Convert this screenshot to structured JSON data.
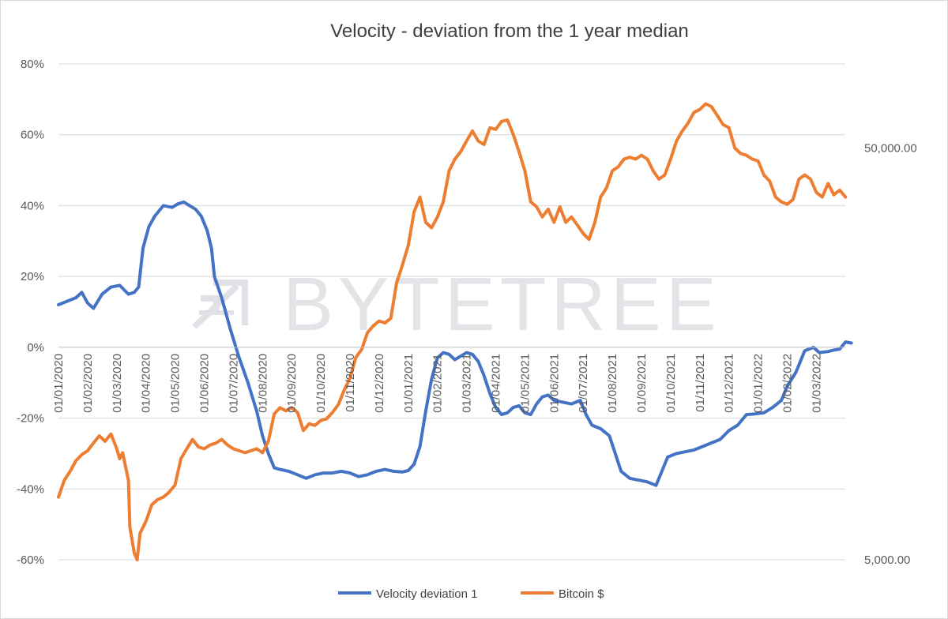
{
  "chart_data": {
    "type": "line",
    "title": "Velocity - deviation from the 1 year median",
    "y_left": {
      "ylim": [
        -60,
        80
      ],
      "ticks": [
        80,
        60,
        40,
        20,
        0,
        -20,
        -40,
        -60
      ],
      "tick_labels": [
        "80%",
        "60%",
        "40%",
        "20%",
        "0%",
        "-20%",
        "-40%",
        "-60%"
      ]
    },
    "y_right": {
      "scale": "log",
      "ylim": [
        5000,
        80000
      ],
      "ticks": [
        50000,
        5000
      ],
      "tick_labels": [
        "50,000.00",
        "5,000.00"
      ]
    },
    "x": {
      "start": "2020-01-01",
      "end": "2022-03-31",
      "tick_labels": [
        "01/01/2020",
        "01/02/2020",
        "01/03/2020",
        "01/04/2020",
        "01/05/2020",
        "01/06/2020",
        "01/07/2020",
        "01/08/2020",
        "01/09/2020",
        "01/10/2020",
        "01/11/2020",
        "01/12/2020",
        "01/01/2021",
        "01/02/2021",
        "01/03/2021",
        "01/04/2021",
        "01/05/2021",
        "01/06/2021",
        "01/07/2021",
        "01/08/2021",
        "01/09/2021",
        "01/10/2021",
        "01/11/2021",
        "01/12/2021",
        "01/01/2022",
        "01/02/2022",
        "01/03/2022"
      ]
    },
    "series": [
      {
        "name": "Velocity deviation 1",
        "color": "#4472c4",
        "axis": "left",
        "points": [
          [
            0,
            12
          ],
          [
            0.3,
            13
          ],
          [
            0.6,
            14
          ],
          [
            0.8,
            15.5
          ],
          [
            1.0,
            12.5
          ],
          [
            1.2,
            11
          ],
          [
            1.5,
            15
          ],
          [
            1.8,
            17
          ],
          [
            2.1,
            17.5
          ],
          [
            2.4,
            15
          ],
          [
            2.6,
            15.5
          ],
          [
            2.75,
            17
          ],
          [
            2.9,
            28
          ],
          [
            3.1,
            34
          ],
          [
            3.3,
            37
          ],
          [
            3.6,
            40
          ],
          [
            3.9,
            39.5
          ],
          [
            4.1,
            40.5
          ],
          [
            4.3,
            41
          ],
          [
            4.5,
            40
          ],
          [
            4.7,
            39
          ],
          [
            4.9,
            37
          ],
          [
            5.1,
            33
          ],
          [
            5.25,
            28
          ],
          [
            5.35,
            20
          ],
          [
            5.6,
            14
          ],
          [
            5.9,
            5
          ],
          [
            6.2,
            -3
          ],
          [
            6.5,
            -10
          ],
          [
            6.8,
            -18
          ],
          [
            7.0,
            -25
          ],
          [
            7.2,
            -30
          ],
          [
            7.4,
            -34
          ],
          [
            7.6,
            -34.5
          ],
          [
            7.9,
            -35
          ],
          [
            8.2,
            -36
          ],
          [
            8.5,
            -37
          ],
          [
            8.8,
            -36
          ],
          [
            9.1,
            -35.5
          ],
          [
            9.4,
            -35.5
          ],
          [
            9.7,
            -35
          ],
          [
            10.0,
            -35.5
          ],
          [
            10.3,
            -36.5
          ],
          [
            10.6,
            -36
          ],
          [
            10.9,
            -35
          ],
          [
            11.2,
            -34.5
          ],
          [
            11.5,
            -35
          ],
          [
            11.8,
            -35.2
          ],
          [
            12.0,
            -34.8
          ],
          [
            12.2,
            -33
          ],
          [
            12.4,
            -28
          ],
          [
            12.6,
            -18
          ],
          [
            12.8,
            -9
          ],
          [
            13.0,
            -3
          ],
          [
            13.2,
            -1.5
          ],
          [
            13.4,
            -2
          ],
          [
            13.6,
            -3.5
          ],
          [
            13.8,
            -2.5
          ],
          [
            14.0,
            -1.5
          ],
          [
            14.2,
            -2
          ],
          [
            14.4,
            -4
          ],
          [
            14.6,
            -8
          ],
          [
            14.8,
            -13
          ],
          [
            15.0,
            -17
          ],
          [
            15.2,
            -19
          ],
          [
            15.4,
            -18.5
          ],
          [
            15.6,
            -17
          ],
          [
            15.8,
            -16.5
          ],
          [
            16.0,
            -18.5
          ],
          [
            16.2,
            -19
          ],
          [
            16.4,
            -16
          ],
          [
            16.6,
            -14
          ],
          [
            16.8,
            -13.5
          ],
          [
            17.0,
            -15
          ],
          [
            17.3,
            -15.5
          ],
          [
            17.6,
            -16
          ],
          [
            17.9,
            -15
          ],
          [
            18.1,
            -19
          ],
          [
            18.3,
            -22
          ],
          [
            18.6,
            -23
          ],
          [
            18.9,
            -25
          ],
          [
            19.1,
            -30
          ],
          [
            19.3,
            -35
          ],
          [
            19.6,
            -37
          ],
          [
            19.9,
            -37.5
          ],
          [
            20.2,
            -38
          ],
          [
            20.5,
            -39
          ],
          [
            20.7,
            -35
          ],
          [
            20.9,
            -31
          ],
          [
            21.2,
            -30
          ],
          [
            21.5,
            -29.5
          ],
          [
            21.8,
            -29
          ],
          [
            22.1,
            -28
          ],
          [
            22.4,
            -27
          ],
          [
            22.7,
            -26
          ],
          [
            23.0,
            -23.5
          ],
          [
            23.3,
            -22
          ],
          [
            23.6,
            -19
          ],
          [
            23.9,
            -18.8
          ],
          [
            24.2,
            -18.5
          ],
          [
            24.5,
            -17
          ],
          [
            24.8,
            -15
          ],
          [
            25.0,
            -11
          ],
          [
            25.3,
            -7
          ],
          [
            25.6,
            -1
          ],
          [
            25.9,
            0
          ],
          [
            26.1,
            -1.5
          ],
          [
            26.4,
            -1.2
          ],
          [
            26.6,
            -0.8
          ],
          [
            26.8,
            -0.5
          ],
          [
            27.0,
            1.5
          ],
          [
            27.2,
            1.2
          ]
        ]
      },
      {
        "name": "Bitcoin $",
        "color": "#ed7d31",
        "axis": "right",
        "points": [
          [
            0,
            7100
          ],
          [
            0.2,
            7800
          ],
          [
            0.4,
            8200
          ],
          [
            0.6,
            8700
          ],
          [
            0.8,
            9000
          ],
          [
            1.0,
            9200
          ],
          [
            1.2,
            9600
          ],
          [
            1.4,
            10000
          ],
          [
            1.6,
            9700
          ],
          [
            1.8,
            10100
          ],
          [
            2.0,
            9300
          ],
          [
            2.1,
            8800
          ],
          [
            2.2,
            9100
          ],
          [
            2.4,
            7800
          ],
          [
            2.45,
            6000
          ],
          [
            2.6,
            5200
          ],
          [
            2.7,
            5000
          ],
          [
            2.8,
            5800
          ],
          [
            3.0,
            6200
          ],
          [
            3.2,
            6800
          ],
          [
            3.4,
            7000
          ],
          [
            3.6,
            7100
          ],
          [
            3.8,
            7300
          ],
          [
            4.0,
            7600
          ],
          [
            4.2,
            8800
          ],
          [
            4.4,
            9300
          ],
          [
            4.6,
            9800
          ],
          [
            4.8,
            9400
          ],
          [
            5.0,
            9300
          ],
          [
            5.2,
            9500
          ],
          [
            5.4,
            9600
          ],
          [
            5.6,
            9800
          ],
          [
            5.8,
            9500
          ],
          [
            6.0,
            9300
          ],
          [
            6.2,
            9200
          ],
          [
            6.4,
            9100
          ],
          [
            6.6,
            9200
          ],
          [
            6.8,
            9300
          ],
          [
            7.0,
            9100
          ],
          [
            7.2,
            9700
          ],
          [
            7.4,
            11300
          ],
          [
            7.6,
            11700
          ],
          [
            7.8,
            11500
          ],
          [
            8.0,
            11700
          ],
          [
            8.2,
            11400
          ],
          [
            8.4,
            10300
          ],
          [
            8.6,
            10700
          ],
          [
            8.8,
            10600
          ],
          [
            9.0,
            10900
          ],
          [
            9.2,
            11000
          ],
          [
            9.4,
            11400
          ],
          [
            9.6,
            11900
          ],
          [
            9.8,
            12900
          ],
          [
            10.0,
            13800
          ],
          [
            10.2,
            15500
          ],
          [
            10.4,
            16200
          ],
          [
            10.6,
            17800
          ],
          [
            10.8,
            18500
          ],
          [
            11.0,
            19000
          ],
          [
            11.2,
            18800
          ],
          [
            11.4,
            19300
          ],
          [
            11.6,
            23500
          ],
          [
            11.8,
            26000
          ],
          [
            12.0,
            29000
          ],
          [
            12.2,
            35000
          ],
          [
            12.4,
            38000
          ],
          [
            12.6,
            33000
          ],
          [
            12.8,
            32000
          ],
          [
            13.0,
            34000
          ],
          [
            13.2,
            37000
          ],
          [
            13.4,
            44000
          ],
          [
            13.6,
            47000
          ],
          [
            13.8,
            49000
          ],
          [
            14.0,
            52000
          ],
          [
            14.2,
            55000
          ],
          [
            14.4,
            52000
          ],
          [
            14.6,
            51000
          ],
          [
            14.8,
            56000
          ],
          [
            15.0,
            55500
          ],
          [
            15.2,
            58000
          ],
          [
            15.4,
            58500
          ],
          [
            15.6,
            54000
          ],
          [
            15.8,
            49000
          ],
          [
            16.0,
            44000
          ],
          [
            16.2,
            37000
          ],
          [
            16.4,
            36000
          ],
          [
            16.6,
            34000
          ],
          [
            16.8,
            35500
          ],
          [
            17.0,
            33000
          ],
          [
            17.2,
            36000
          ],
          [
            17.4,
            33000
          ],
          [
            17.6,
            34000
          ],
          [
            17.8,
            32500
          ],
          [
            18.0,
            31000
          ],
          [
            18.2,
            30000
          ],
          [
            18.4,
            33000
          ],
          [
            18.6,
            38000
          ],
          [
            18.8,
            40000
          ],
          [
            19.0,
            44000
          ],
          [
            19.2,
            45000
          ],
          [
            19.4,
            47000
          ],
          [
            19.6,
            47500
          ],
          [
            19.8,
            47000
          ],
          [
            20.0,
            48000
          ],
          [
            20.2,
            47000
          ],
          [
            20.4,
            44000
          ],
          [
            20.6,
            42000
          ],
          [
            20.8,
            43000
          ],
          [
            21.0,
            47000
          ],
          [
            21.2,
            52000
          ],
          [
            21.4,
            55000
          ],
          [
            21.6,
            57500
          ],
          [
            21.8,
            61000
          ],
          [
            22.0,
            62000
          ],
          [
            22.2,
            64000
          ],
          [
            22.4,
            63000
          ],
          [
            22.6,
            60000
          ],
          [
            22.8,
            57000
          ],
          [
            23.0,
            56000
          ],
          [
            23.2,
            50000
          ],
          [
            23.4,
            48500
          ],
          [
            23.6,
            48000
          ],
          [
            23.8,
            47000
          ],
          [
            24.0,
            46500
          ],
          [
            24.2,
            43000
          ],
          [
            24.4,
            41500
          ],
          [
            24.6,
            38000
          ],
          [
            24.8,
            37000
          ],
          [
            25.0,
            36500
          ],
          [
            25.2,
            37500
          ],
          [
            25.4,
            42000
          ],
          [
            25.6,
            43000
          ],
          [
            25.8,
            42000
          ],
          [
            26.0,
            39000
          ],
          [
            26.2,
            38000
          ],
          [
            26.4,
            41000
          ],
          [
            26.6,
            38500
          ],
          [
            26.8,
            39500
          ],
          [
            27.0,
            38000
          ]
        ]
      }
    ],
    "legend": {
      "position": "bottom",
      "entries": [
        "Velocity deviation 1",
        "Bitcoin $"
      ]
    },
    "gridlines": true
  },
  "watermark": {
    "text": "BYTETREE"
  }
}
